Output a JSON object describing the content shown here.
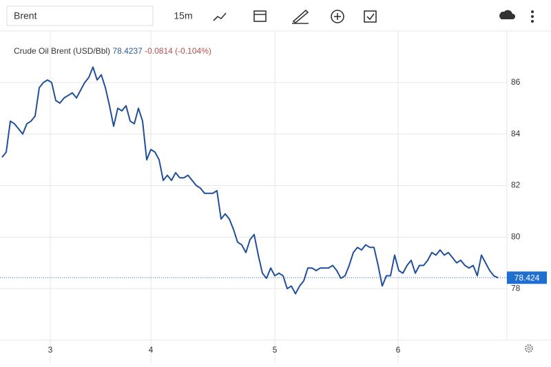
{
  "toolbar": {
    "symbol": "Brent",
    "interval": "15m"
  },
  "chart_data": {
    "type": "line",
    "title": "Crude Oil Brent (USD/Bbl)",
    "last_value": "78.4237",
    "change": "-0.0814",
    "change_percent": "(-0.104%)",
    "last_price": 78.424,
    "xlim": [
      -0.5,
      122.17
    ],
    "xticks": [
      {
        "value": 11.67,
        "label": "3"
      },
      {
        "value": 36,
        "label": "4"
      },
      {
        "value": 66,
        "label": "5"
      },
      {
        "value": 95.83,
        "label": "6"
      }
    ],
    "ylim": [
      76,
      88
    ],
    "yticks": [
      78,
      80,
      82,
      84,
      86
    ],
    "grid": true,
    "series": [
      {
        "name": "Brent",
        "color": "#1f4e9c",
        "values": [
          83.1,
          83.3,
          84.5,
          84.4,
          84.2,
          84.0,
          84.4,
          84.5,
          84.7,
          85.8,
          86.0,
          86.1,
          86.0,
          85.3,
          85.2,
          85.4,
          85.5,
          85.6,
          85.4,
          85.7,
          86.0,
          86.2,
          86.6,
          86.1,
          86.3,
          85.8,
          85.1,
          84.3,
          85.0,
          84.9,
          85.1,
          84.5,
          84.4,
          85.0,
          84.5,
          83.0,
          83.4,
          83.3,
          83.0,
          82.2,
          82.4,
          82.2,
          82.5,
          82.3,
          82.3,
          82.4,
          82.2,
          82.0,
          81.9,
          81.7,
          81.7,
          81.7,
          81.8,
          80.7,
          80.9,
          80.7,
          80.3,
          79.8,
          79.7,
          79.4,
          79.9,
          80.1,
          79.3,
          78.6,
          78.4,
          78.8,
          78.5,
          78.6,
          78.5,
          78.0,
          78.1,
          77.8,
          78.1,
          78.3,
          78.8,
          78.8,
          78.7,
          78.8,
          78.8,
          78.8,
          78.9,
          78.7,
          78.4,
          78.5,
          78.9,
          79.4,
          79.6,
          79.5,
          79.7,
          79.6,
          79.6,
          78.9,
          78.1,
          78.5,
          78.5,
          79.3,
          78.7,
          78.6,
          78.9,
          79.1,
          78.6,
          78.9,
          78.9,
          79.1,
          79.4,
          79.3,
          79.5,
          79.3,
          79.4,
          79.2,
          79.0,
          79.1,
          78.9,
          78.8,
          78.9,
          78.5,
          79.3,
          79.0,
          78.7,
          78.5,
          78.42
        ]
      }
    ]
  }
}
